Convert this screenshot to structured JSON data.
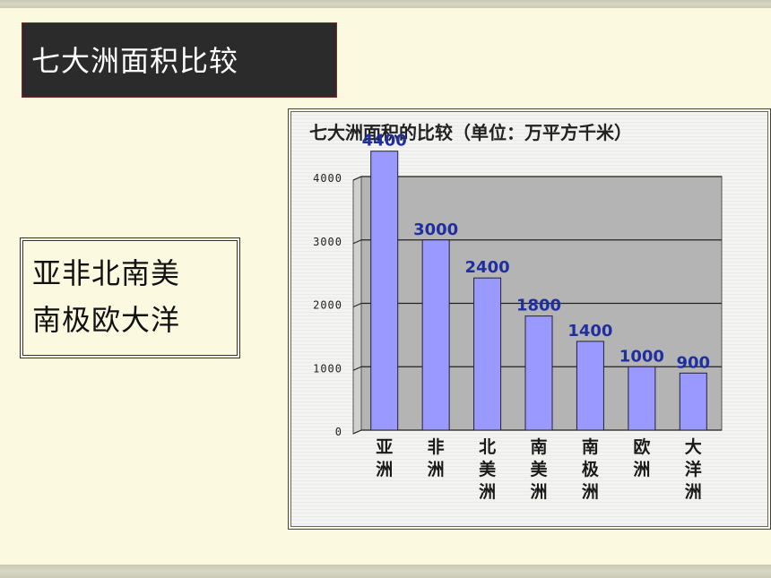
{
  "slide": {
    "title": "七大洲面积比较",
    "mnemonic": [
      "亚非北南美",
      "南极欧大洋"
    ]
  },
  "colors": {
    "title_bg": "#2b2b2b",
    "plot_bg": "#b4b4b4",
    "bar_fill": "#9999ff",
    "bar_label": "#1f2f9f",
    "slide_bg": "#fbfae0"
  },
  "chart_data": {
    "type": "bar",
    "title": "七大洲面积的比较（单位：万平方千米）",
    "categories": [
      "亚洲",
      "非洲",
      "北美洲",
      "南美洲",
      "南极洲",
      "欧洲",
      "大洋洲"
    ],
    "values": [
      4400,
      3000,
      2400,
      1800,
      1400,
      1000,
      900
    ],
    "ylim": [
      0,
      4000
    ],
    "yticks": [
      0,
      1000,
      2000,
      3000,
      4000
    ],
    "ytick_labels": [
      "0",
      "1000",
      "2000",
      "3000",
      "4000"
    ],
    "grid": true,
    "legend": "none",
    "xlabel": "",
    "ylabel": ""
  }
}
